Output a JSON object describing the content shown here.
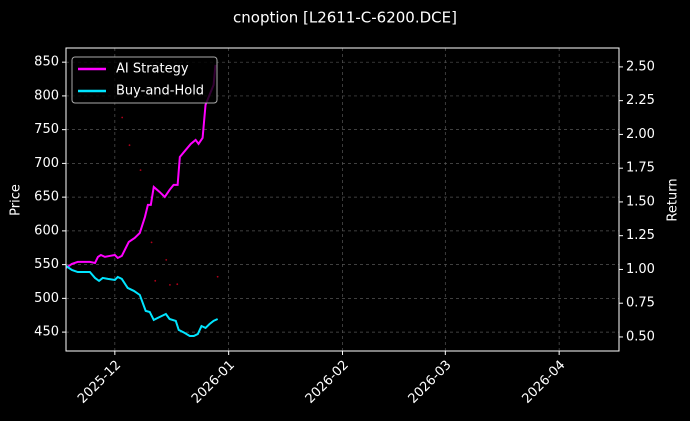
{
  "chart_data": {
    "type": "line",
    "title": "cnoption [L2611-C-6200.DCE]",
    "ylabel": "Price",
    "y2label": "Return",
    "xlim": [
      20409.7,
      20560.3
    ],
    "xticks": [
      {
        "value": 20423,
        "label": "2025-12"
      },
      {
        "value": 20454,
        "label": "2026-01"
      },
      {
        "value": 20485,
        "label": "2026-02"
      },
      {
        "value": 20513,
        "label": "2026-03"
      },
      {
        "value": 20544,
        "label": "2026-04"
      }
    ],
    "ylim": [
      422,
      871
    ],
    "yticks": [
      450,
      500,
      550,
      600,
      650,
      700,
      750,
      800,
      850
    ],
    "y2lim": [
      0.396,
      2.64
    ],
    "y2ticks": [
      {
        "value": 0.5,
        "label": "0.50"
      },
      {
        "value": 0.75,
        "label": "0.75"
      },
      {
        "value": 1,
        "label": "1.00"
      },
      {
        "value": 1.25,
        "label": "1.25"
      },
      {
        "value": 1.5,
        "label": "1.50"
      },
      {
        "value": 1.75,
        "label": "1.75"
      },
      {
        "value": 2,
        "label": "2.00"
      },
      {
        "value": 2.25,
        "label": "2.25"
      },
      {
        "value": 2.5,
        "label": "2.50"
      }
    ],
    "grid": true,
    "legend": "upper left",
    "series": [
      {
        "type": "scatter",
        "color": "#b0001a",
        "x": [
          20425,
          20427,
          20430,
          20433,
          20434,
          20437,
          20438,
          20440,
          20451
        ],
        "values": [
          768,
          727,
          690,
          583,
          526,
          557,
          520,
          521,
          532
        ]
      },
      {
        "name": "AI Strategy",
        "color": "#ff00ff",
        "axis": "y2",
        "x": [
          20409.7,
          20411.3,
          20412.9,
          20416.2,
          20417.6,
          20418.4,
          20419.2,
          20420.3,
          20421.6,
          20423,
          20423.8,
          20424.9,
          20425.7,
          20426.8,
          20428.4,
          20429.8,
          20431.2,
          20432.0,
          20432.8,
          20433.6,
          20435.2,
          20436.6,
          20437.9,
          20439.0,
          20440.1,
          20440.7,
          20442.3,
          20443.7,
          20445.0,
          20445.8,
          20446.9,
          20447.7,
          20448.8,
          20449.9,
          20450.4
        ],
        "values": [
          1.011,
          1.041,
          1.056,
          1.056,
          1.048,
          1.093,
          1.107,
          1.093,
          1.1,
          1.107,
          1.085,
          1.1,
          1.144,
          1.204,
          1.233,
          1.27,
          1.389,
          1.478,
          1.478,
          1.611,
          1.574,
          1.537,
          1.589,
          1.626,
          1.626,
          1.833,
          1.885,
          1.93,
          1.959,
          1.93,
          1.974,
          2.219,
          2.293,
          2.367,
          2.515
        ]
      },
      {
        "name": "Buy-and-Hold",
        "color": "#00e5ff",
        "axis": "y2",
        "x": [
          20409.7,
          20411.3,
          20412.9,
          20416.2,
          20417.6,
          20418.7,
          20419.7,
          20421.1,
          20423,
          20423.8,
          20424.9,
          20426.5,
          20428.2,
          20429.8,
          20431.4,
          20432.5,
          20433.6,
          20435.2,
          20436.9,
          20437.9,
          20439.6,
          20440.4,
          20442.0,
          20443.4,
          20444.5,
          20445.6,
          20446.6,
          20447.7,
          20448.8,
          20449.9,
          20451.0
        ],
        "values": [
          1.026,
          0.996,
          0.981,
          0.981,
          0.937,
          0.915,
          0.937,
          0.93,
          0.922,
          0.944,
          0.93,
          0.863,
          0.841,
          0.811,
          0.693,
          0.685,
          0.626,
          0.648,
          0.67,
          0.633,
          0.619,
          0.552,
          0.53,
          0.507,
          0.507,
          0.522,
          0.581,
          0.567,
          0.596,
          0.619,
          0.633
        ]
      }
    ]
  }
}
